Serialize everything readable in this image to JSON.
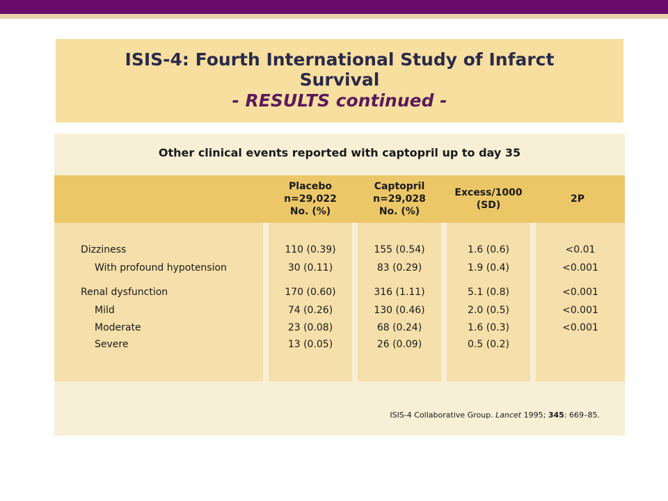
{
  "header": {
    "title_line1": "ISIS-4: Fourth International Study of Infarct",
    "title_line2": "Survival",
    "title_sub": "- RESULTS continued -"
  },
  "table": {
    "heading": "Other clinical events reported with captopril up to day 35",
    "columns": [
      {
        "lines": [
          "Placebo",
          "n=29,022",
          "No. (%)"
        ]
      },
      {
        "lines": [
          "Captopril",
          "n=29,028",
          "No. (%)"
        ]
      },
      {
        "lines": [
          "Excess/1000",
          "(SD)"
        ]
      },
      {
        "lines": [
          "2P"
        ]
      }
    ],
    "rows": [
      {
        "label": "Dizziness",
        "placebo": "110 (0.39)",
        "captopril": "155 (0.54)",
        "excess": "1.6 (0.6)",
        "p": "<0.01"
      },
      {
        "label": "With profound hypotension",
        "placebo": "30 (0.11)",
        "captopril": "83 (0.29)",
        "excess": "1.9 (0.4)",
        "p": "<0.001"
      },
      {
        "label": "Renal dysfunction",
        "placebo": "170 (0.60)",
        "captopril": "316 (1.11)",
        "excess": "5.1 (0.8)",
        "p": "<0.001"
      },
      {
        "label": "Mild",
        "placebo": "74 (0.26)",
        "captopril": "130 (0.46)",
        "excess": "2.0 (0.5)",
        "p": "<0.001"
      },
      {
        "label": "Moderate",
        "placebo": "23 (0.08)",
        "captopril": "68 (0.24)",
        "excess": "1.6 (0.3)",
        "p": "<0.001"
      },
      {
        "label": "Severe",
        "placebo": "13 (0.05)",
        "captopril": "26 (0.09)",
        "excess": "0.5 (0.2)",
        "p": ""
      }
    ]
  },
  "citation": {
    "authors": "ISIS-4 Collaborative Group.",
    "journal": "Lancet",
    "year": "1995;",
    "volume": "345",
    "pages": ": 669–85."
  },
  "colors": {
    "top_bar": "#6a0a6a",
    "title_bg": "#f7dfa0",
    "panel_bg": "#f7efd6",
    "header_band": "#ecc767",
    "column_bg": "#f5dfaa"
  }
}
